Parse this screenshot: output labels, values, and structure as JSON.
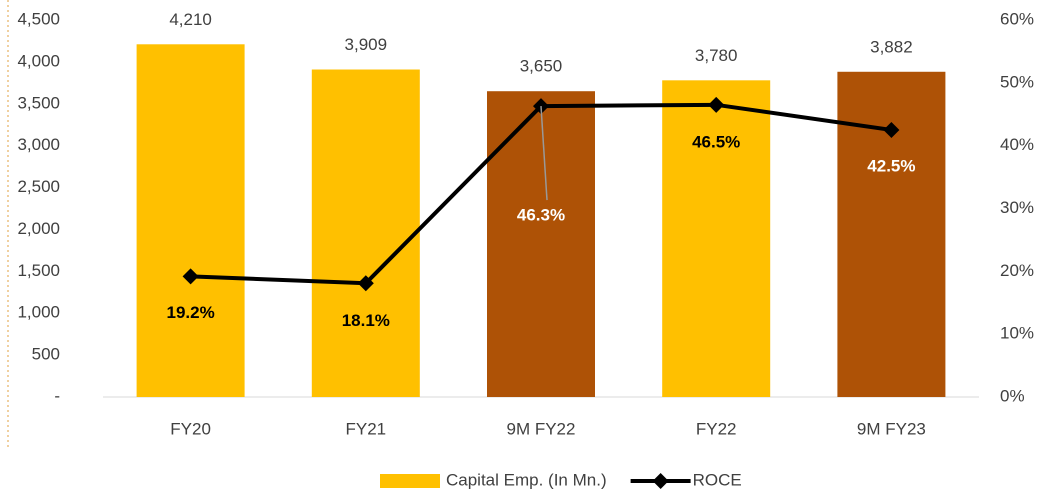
{
  "chart_data": {
    "type": "bar",
    "categories": [
      "FY20",
      "FY21",
      "9M FY22",
      "FY22",
      "9M FY23"
    ],
    "series": [
      {
        "name": "Capital Emp. (In Mn.)",
        "type": "bar",
        "color": "#FFC000",
        "colors": [
          "#FFC000",
          "#FFC000",
          "#AE5206",
          "#FFC000",
          "#AE5206"
        ],
        "values": [
          4210,
          3909,
          3650,
          3780,
          3882
        ],
        "value_labels": [
          "4,210",
          "3,909",
          "3,650",
          "3,780",
          "3,882"
        ]
      },
      {
        "name": "ROCE",
        "type": "line",
        "axis": "y2",
        "color": "#000000",
        "values": [
          19.2,
          18.1,
          46.3,
          46.5,
          42.5
        ],
        "value_labels": [
          "19.2%",
          "18.1%",
          "46.3%",
          "46.5%",
          "42.5%"
        ]
      }
    ],
    "ylim": [
      0,
      4500
    ],
    "yticks": [
      {
        "value": 0,
        "label": "-"
      },
      500,
      {
        "value": 1000,
        "label": "1,000"
      },
      {
        "value": 1500,
        "label": "1,500"
      },
      {
        "value": 2000,
        "label": "2,000"
      },
      {
        "value": 2500,
        "label": "2,500"
      },
      {
        "value": 3000,
        "label": "3,000"
      },
      {
        "value": 3500,
        "label": "3,500"
      },
      {
        "value": 4000,
        "label": "4,000"
      },
      {
        "value": 4500,
        "label": "4,500"
      }
    ],
    "y2lim": [
      0,
      60
    ],
    "y2ticks": [
      {
        "value": 0,
        "label": "0%"
      },
      {
        "value": 10,
        "label": "10%"
      },
      {
        "value": 20,
        "label": "20%"
      },
      {
        "value": 30,
        "label": "30%"
      },
      {
        "value": 40,
        "label": "40%"
      },
      {
        "value": 50,
        "label": "50%"
      },
      {
        "value": 60,
        "label": "60%"
      }
    ],
    "grid": false,
    "legend": "bottom"
  }
}
